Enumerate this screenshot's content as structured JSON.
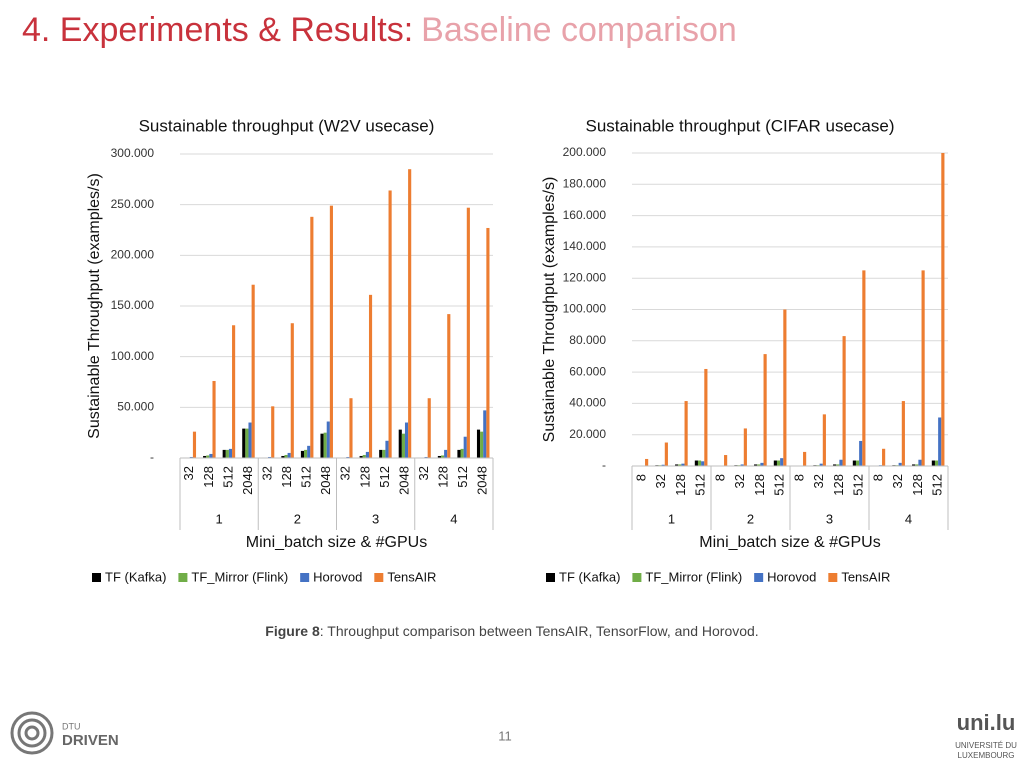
{
  "slide": {
    "title_main": "4. Experiments & Results:",
    "title_sub": "Baseline comparison",
    "caption_label": "Figure 8",
    "caption_text": ": Throughput comparison between TensAIR, TensorFlow, and Horovod.",
    "page_number": "11",
    "logo_left_small": "DTU",
    "logo_left": "DRIVEN",
    "logo_right": "uni.lu",
    "logo_right_line1": "UNIVERSITÉ DU",
    "logo_right_line2": "LUXEMBOURG"
  },
  "chart_data": [
    {
      "type": "bar",
      "title": "Sustainable throughput (W2V usecase)",
      "x_label": "Mini_batch size & #GPUs",
      "y_label": "Sustainable Throughput (examples/s)",
      "groups": [
        {
          "label": "1",
          "categories": [
            "32",
            "128",
            "512",
            "2048"
          ]
        },
        {
          "label": "2",
          "categories": [
            "32",
            "128",
            "512",
            "2048"
          ]
        },
        {
          "label": "3",
          "categories": [
            "32",
            "128",
            "512",
            "2048"
          ]
        },
        {
          "label": "4",
          "categories": [
            "32",
            "128",
            "512",
            "2048"
          ]
        }
      ],
      "ylim": [
        0,
        300000
      ],
      "yticks": [
        {
          "value": 0,
          "label": "-"
        },
        {
          "value": 50000,
          "label": "50.000"
        },
        {
          "value": 100000,
          "label": "100.000"
        },
        {
          "value": 150000,
          "label": "150.000"
        },
        {
          "value": 200000,
          "label": "200.000"
        },
        {
          "value": 250000,
          "label": "250.000"
        },
        {
          "value": 300000,
          "label": "300.000"
        }
      ],
      "grid": true,
      "legend": "bottom",
      "series": [
        {
          "name": "TF (Kafka)",
          "color": "#000000",
          "values": [
            500,
            2000,
            8000,
            29000,
            500,
            2000,
            7000,
            24000,
            500,
            2000,
            8000,
            28000,
            500,
            2000,
            8000,
            28000
          ]
        },
        {
          "name": "TF_Mirror (Flink)",
          "color": "#70ad47",
          "values": [
            500,
            2500,
            8000,
            29000,
            500,
            3000,
            8000,
            25000,
            500,
            3000,
            8000,
            24000,
            500,
            2500,
            9000,
            26000
          ]
        },
        {
          "name": "Horovod",
          "color": "#4472c4",
          "values": [
            1000,
            4000,
            9000,
            35000,
            1000,
            5000,
            12000,
            36000,
            1000,
            6000,
            17000,
            35000,
            1000,
            8000,
            21000,
            47000
          ]
        },
        {
          "name": "TensAIR",
          "color": "#ed7d31",
          "values": [
            26000,
            76000,
            131000,
            171000,
            51000,
            133000,
            238000,
            249000,
            59000,
            161000,
            264000,
            285000,
            59000,
            142000,
            247000,
            227000
          ]
        }
      ]
    },
    {
      "type": "bar",
      "title": "Sustainable throughput (CIFAR usecase)",
      "x_label": "Mini_batch size & #GPUs",
      "y_label": "Sustainable Throughput (examples/s)",
      "groups": [
        {
          "label": "1",
          "categories": [
            "8",
            "32",
            "128",
            "512"
          ]
        },
        {
          "label": "2",
          "categories": [
            "8",
            "32",
            "128",
            "512"
          ]
        },
        {
          "label": "3",
          "categories": [
            "8",
            "32",
            "128",
            "512"
          ]
        },
        {
          "label": "4",
          "categories": [
            "8",
            "32",
            "128",
            "512"
          ]
        }
      ],
      "ylim": [
        0,
        200000
      ],
      "yticks": [
        {
          "value": 0,
          "label": "-"
        },
        {
          "value": 20000,
          "label": "20.000"
        },
        {
          "value": 40000,
          "label": "40.000"
        },
        {
          "value": 60000,
          "label": "60.000"
        },
        {
          "value": 80000,
          "label": "80.000"
        },
        {
          "value": 100000,
          "label": "100.000"
        },
        {
          "value": 120000,
          "label": "120.000"
        },
        {
          "value": 140000,
          "label": "140.000"
        },
        {
          "value": 160000,
          "label": "160.000"
        },
        {
          "value": 180000,
          "label": "180.000"
        },
        {
          "value": 200000,
          "label": "200.000"
        }
      ],
      "grid": true,
      "legend": "bottom",
      "series": [
        {
          "name": "TF (Kafka)",
          "color": "#000000",
          "values": [
            200,
            500,
            1000,
            3500,
            200,
            500,
            1000,
            3500,
            200,
            500,
            1000,
            3500,
            200,
            500,
            1000,
            3500
          ]
        },
        {
          "name": "TF_Mirror (Flink)",
          "color": "#70ad47",
          "values": [
            200,
            500,
            1000,
            3500,
            200,
            500,
            1000,
            3500,
            200,
            500,
            1000,
            3500,
            200,
            500,
            1000,
            3500
          ]
        },
        {
          "name": "Horovod",
          "color": "#4472c4",
          "values": [
            300,
            800,
            1500,
            3000,
            300,
            1000,
            2000,
            5000,
            300,
            1500,
            4000,
            16000,
            500,
            2000,
            4000,
            31000
          ]
        },
        {
          "name": "TensAIR",
          "color": "#ed7d31",
          "values": [
            4500,
            15000,
            41500,
            62000,
            7000,
            24000,
            71500,
            100000,
            9000,
            33000,
            83000,
            125000,
            11000,
            41500,
            125000,
            200000
          ]
        }
      ]
    }
  ]
}
